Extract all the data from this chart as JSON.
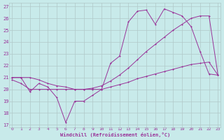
{
  "background_color": "#c8eaea",
  "grid_color": "#b0c8c8",
  "line_color": "#993399",
  "xlabel": "Windchill (Refroidissement éolien,°C)",
  "ylim": [
    17,
    27
  ],
  "yticks": [
    17,
    18,
    19,
    20,
    21,
    22,
    23,
    24,
    25,
    26,
    27
  ],
  "xlim": [
    0,
    23
  ],
  "xticks": [
    0,
    1,
    2,
    3,
    4,
    5,
    6,
    7,
    8,
    9,
    10,
    11,
    12,
    13,
    14,
    15,
    16,
    17,
    18,
    19,
    20,
    21,
    22,
    23
  ],
  "series1_x": [
    0,
    1,
    2,
    3,
    4,
    5,
    6,
    7,
    8,
    9,
    10,
    11,
    12,
    13,
    14,
    15,
    16,
    17,
    18,
    19,
    20,
    21,
    22,
    23
  ],
  "series1_y": [
    21.0,
    21.0,
    19.8,
    20.5,
    20.2,
    19.3,
    17.2,
    19.0,
    19.0,
    19.5,
    20.0,
    22.2,
    22.8,
    25.7,
    26.6,
    26.7,
    25.5,
    26.8,
    26.5,
    26.2,
    25.3,
    23.2,
    21.3,
    21.2
  ],
  "series2_x": [
    0,
    1,
    2,
    3,
    4,
    5,
    6,
    7,
    8,
    9,
    10,
    11,
    12,
    13,
    14,
    15,
    16,
    17,
    18,
    19,
    20,
    21,
    22,
    23
  ],
  "series2_y": [
    21.0,
    21.0,
    21.0,
    20.8,
    20.5,
    20.3,
    20.2,
    20.0,
    20.0,
    20.1,
    20.3,
    20.7,
    21.2,
    21.8,
    22.5,
    23.2,
    23.8,
    24.4,
    25.0,
    25.5,
    26.0,
    26.2,
    26.2,
    21.2
  ],
  "series3_x": [
    0,
    1,
    2,
    3,
    4,
    5,
    6,
    7,
    8,
    9,
    10,
    11,
    12,
    13,
    14,
    15,
    16,
    17,
    18,
    19,
    20,
    21,
    22,
    23
  ],
  "series3_y": [
    20.8,
    20.5,
    20.0,
    20.0,
    20.0,
    20.0,
    20.0,
    20.0,
    20.0,
    20.0,
    20.0,
    20.2,
    20.4,
    20.6,
    20.9,
    21.1,
    21.3,
    21.5,
    21.7,
    21.9,
    22.1,
    22.2,
    22.3,
    21.2
  ]
}
